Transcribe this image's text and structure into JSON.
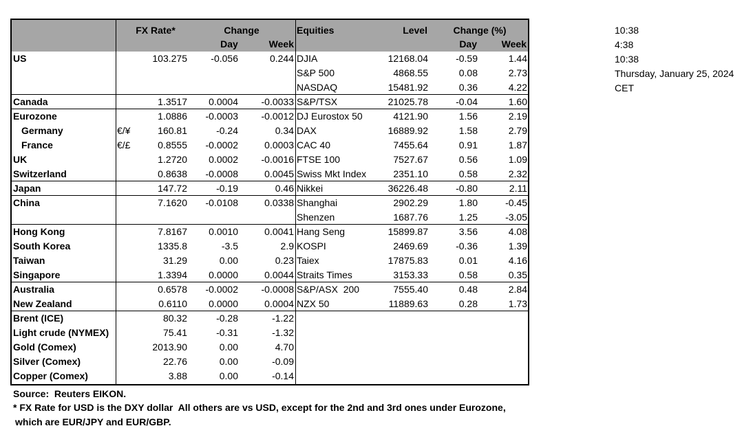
{
  "header": {
    "fx_rate": "FX Rate*",
    "change": "Change",
    "fx_day": "Day",
    "fx_week": "Week",
    "equities": "Equities",
    "level": "Level",
    "change_pct": "Change (%)",
    "eq_day": "Day",
    "eq_week": "Week"
  },
  "table": {
    "groups": [
      {
        "rows": [
          {
            "name": "US",
            "rate": "103.275",
            "day": "-0.056",
            "week": "0.244",
            "equity": "DJIA",
            "level": "12168.04",
            "eq_day": "-0.59",
            "eq_week": "1.44"
          },
          {
            "equity": "S&P 500",
            "level": "4868.55",
            "eq_day": "0.08",
            "eq_week": "2.73"
          },
          {
            "equity": "NASDAQ",
            "level": "15481.92",
            "eq_day": "0.36",
            "eq_week": "4.22"
          }
        ]
      },
      {
        "rows": [
          {
            "name": "Canada",
            "rate": "1.3517",
            "day": "0.0004",
            "week": "-0.0033",
            "equity": "S&P/TSX",
            "level": "21025.78",
            "eq_day": "-0.04",
            "eq_week": "1.60"
          }
        ]
      },
      {
        "rows": [
          {
            "name": "Eurozone",
            "rate": "1.0886",
            "day": "-0.0003",
            "week": "-0.0012",
            "equity": "DJ Eurostox 50",
            "level": "4121.90",
            "eq_day": "1.56",
            "eq_week": "2.19"
          },
          {
            "name": "Germany",
            "pair": "€/¥",
            "rate": "160.81",
            "day": "-0.24",
            "week": "0.34",
            "equity": "DAX",
            "level": "16889.92",
            "eq_day": "1.58",
            "eq_week": "2.79"
          },
          {
            "name": "France",
            "pair": "€/£",
            "rate": "0.8555",
            "day": "-0.0002",
            "week": "0.0003",
            "equity": "CAC 40",
            "level": "7455.64",
            "eq_day": "0.91",
            "eq_week": "1.87"
          },
          {
            "name": "UK",
            "rate": "1.2720",
            "day": "0.0002",
            "week": "-0.0016",
            "equity": "FTSE 100",
            "level": "7527.67",
            "eq_day": "0.56",
            "eq_week": "1.09"
          },
          {
            "name": "Switzerland",
            "rate": "0.8638",
            "day": "-0.0008",
            "week": "0.0045",
            "equity": "Swiss Mkt Index",
            "level": "2351.10",
            "eq_day": "0.58",
            "eq_week": "2.32"
          }
        ]
      },
      {
        "rows": [
          {
            "name": "Japan",
            "rate": "147.72",
            "day": "-0.19",
            "week": "0.46",
            "equity": "Nikkei",
            "level": "36226.48",
            "eq_day": "-0.80",
            "eq_week": "2.11"
          }
        ]
      },
      {
        "rows": [
          {
            "name": "China",
            "rate": "7.1620",
            "day": "-0.0108",
            "week": "0.0338",
            "equity": "Shanghai",
            "level": "2902.29",
            "eq_day": "1.80",
            "eq_week": "-0.45"
          },
          {
            "equity": "Shenzen",
            "level": "1687.76",
            "eq_day": "1.25",
            "eq_week": "-3.05"
          }
        ]
      },
      {
        "rows": [
          {
            "name": "Hong Kong",
            "rate": "7.8167",
            "day": "0.0010",
            "week": "0.0041",
            "equity": "Hang Seng",
            "level": "15899.87",
            "eq_day": "3.56",
            "eq_week": "4.08"
          },
          {
            "name": "South Korea",
            "rate": "1335.8",
            "day": "-3.5",
            "week": "2.9",
            "equity": "KOSPI",
            "level": "2469.69",
            "eq_day": "-0.36",
            "eq_week": "1.39"
          },
          {
            "name": "Taiwan",
            "rate": "31.29",
            "day": "0.00",
            "week": "0.23",
            "equity": "Taiex",
            "level": "17875.83",
            "eq_day": "0.01",
            "eq_week": "4.16"
          },
          {
            "name": "Singapore",
            "rate": "1.3394",
            "day": "0.0000",
            "week": "0.0044",
            "equity": "Straits Times",
            "level": "3153.33",
            "eq_day": "0.58",
            "eq_week": "0.35"
          }
        ]
      },
      {
        "rows": [
          {
            "name": "Australia",
            "rate": "0.6578",
            "day": "-0.0002",
            "week": "-0.0008",
            "equity": "S&P/ASX  200",
            "level": "7555.40",
            "eq_day": "0.48",
            "eq_week": "2.84"
          },
          {
            "name": "New Zealand",
            "rate": "0.6110",
            "day": "0.0000",
            "week": "0.0004",
            "equity": "NZX 50",
            "level": "11889.63",
            "eq_day": "0.28",
            "eq_week": "1.73"
          }
        ]
      },
      {
        "rows": [
          {
            "name": "Brent (ICE)",
            "rate": "80.32",
            "day": "-0.28",
            "week": "-1.22"
          },
          {
            "name": "Light crude (NYMEX)",
            "rate": "75.41",
            "day": "-0.31",
            "week": "-1.32"
          },
          {
            "name": "Gold (Comex)",
            "rate": "2013.90",
            "day": "0.00",
            "week": "4.70"
          },
          {
            "name": "Silver (Comex)",
            "rate": "22.76",
            "day": "0.00",
            "week": "-0.09"
          },
          {
            "name": "Copper (Comex)",
            "rate": "3.88",
            "day": "0.00",
            "week": "-0.14"
          }
        ]
      }
    ]
  },
  "side": [
    "10:38",
    "4:38",
    "10:38",
    "Thursday, January 25, 2024",
    "CET"
  ],
  "footer": {
    "source": "Source:  Reuters EIKON.",
    "note": [
      "* FX Rate for USD is the DXY dollar  All others are vs USD, except for the 2nd and 3rd ones under Eurozone,",
      "which are EUR/JPY and EUR/GBP."
    ]
  }
}
